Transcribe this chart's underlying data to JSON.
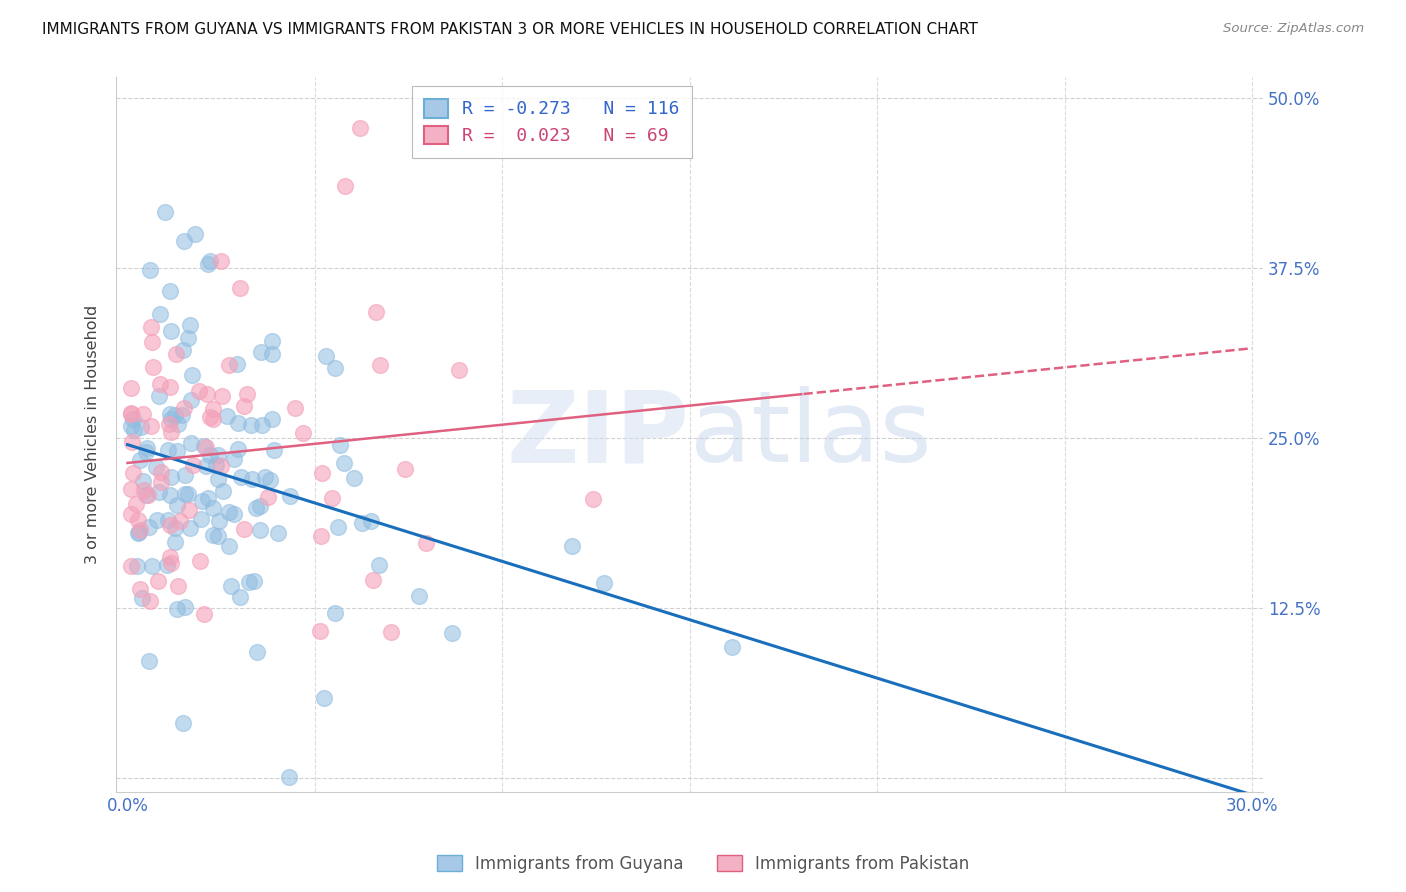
{
  "title": "IMMIGRANTS FROM GUYANA VS IMMIGRANTS FROM PAKISTAN 3 OR MORE VEHICLES IN HOUSEHOLD CORRELATION CHART",
  "source": "Source: ZipAtlas.com",
  "ylabel": "3 or more Vehicles in Household",
  "xlim": [
    0.0,
    0.3
  ],
  "ylim": [
    0.0,
    0.5
  ],
  "xticks": [
    0.0,
    0.05,
    0.1,
    0.15,
    0.2,
    0.25,
    0.3
  ],
  "yticks": [
    0.0,
    0.125,
    0.25,
    0.375,
    0.5
  ],
  "ytick_labels": [
    "",
    "12.5%",
    "25.0%",
    "37.5%",
    "50.0%"
  ],
  "xtick_labels": [
    "0.0%",
    "",
    "",
    "",
    "",
    "",
    "30.0%"
  ],
  "watermark": "ZIPatlas",
  "guyana_color": "#90bce0",
  "pakistan_color": "#f4a0b8",
  "guyana_line_color": "#1a6fbd",
  "pakistan_line_color": "#e06080",
  "guyana_R": -0.273,
  "guyana_N": 116,
  "pakistan_R": 0.023,
  "pakistan_N": 69,
  "tick_color": "#4472c4",
  "legend_label_guyana": "R = -0.273   N = 116",
  "legend_label_pakistan": "R =  0.023   N = 69",
  "bottom_legend_guyana": "Immigrants from Guyana",
  "bottom_legend_pakistan": "Immigrants from Pakistan"
}
